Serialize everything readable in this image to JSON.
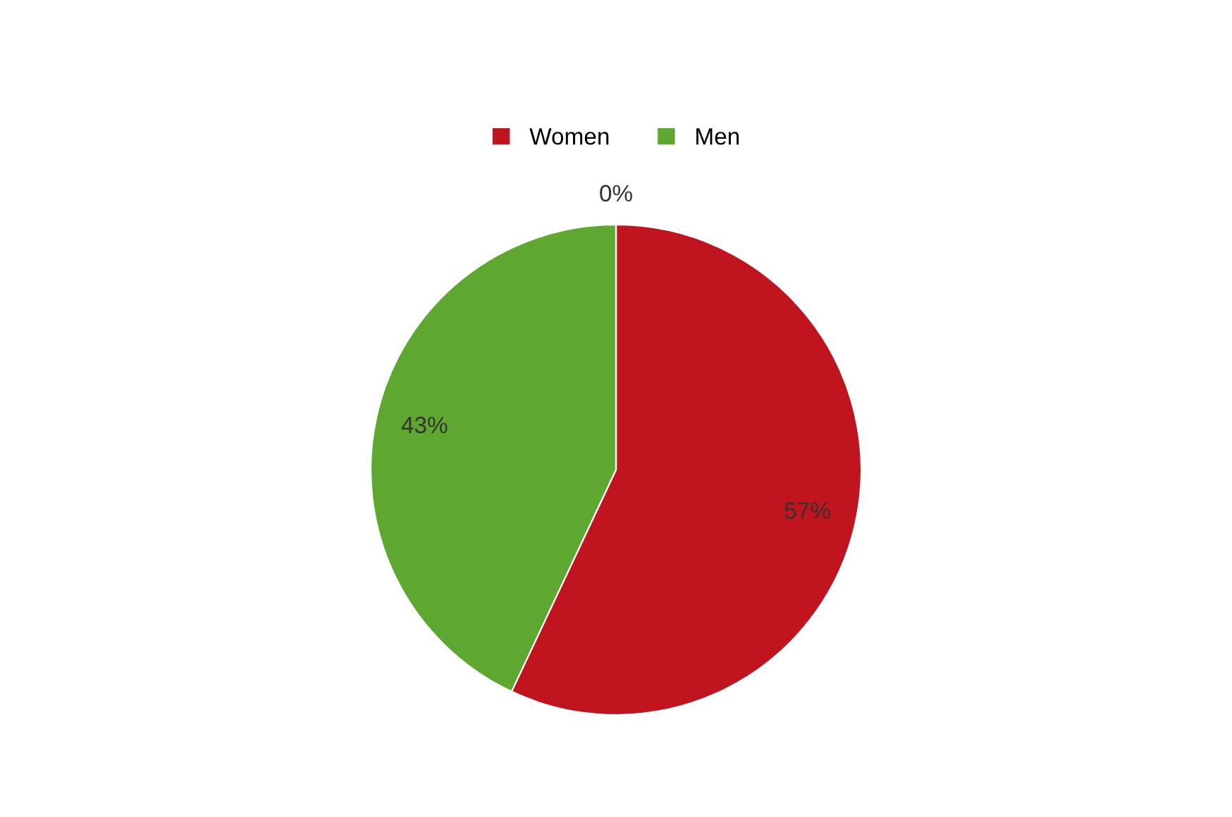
{
  "chart_data": {
    "type": "pie",
    "categories": [
      "Women",
      "Men",
      null
    ],
    "values": [
      57,
      43,
      0
    ],
    "colors": [
      "#c0141e",
      "#5ea832",
      "#4f7fbf"
    ],
    "value_labels": [
      "57%",
      "43%",
      "0%"
    ],
    "legend": "top"
  }
}
